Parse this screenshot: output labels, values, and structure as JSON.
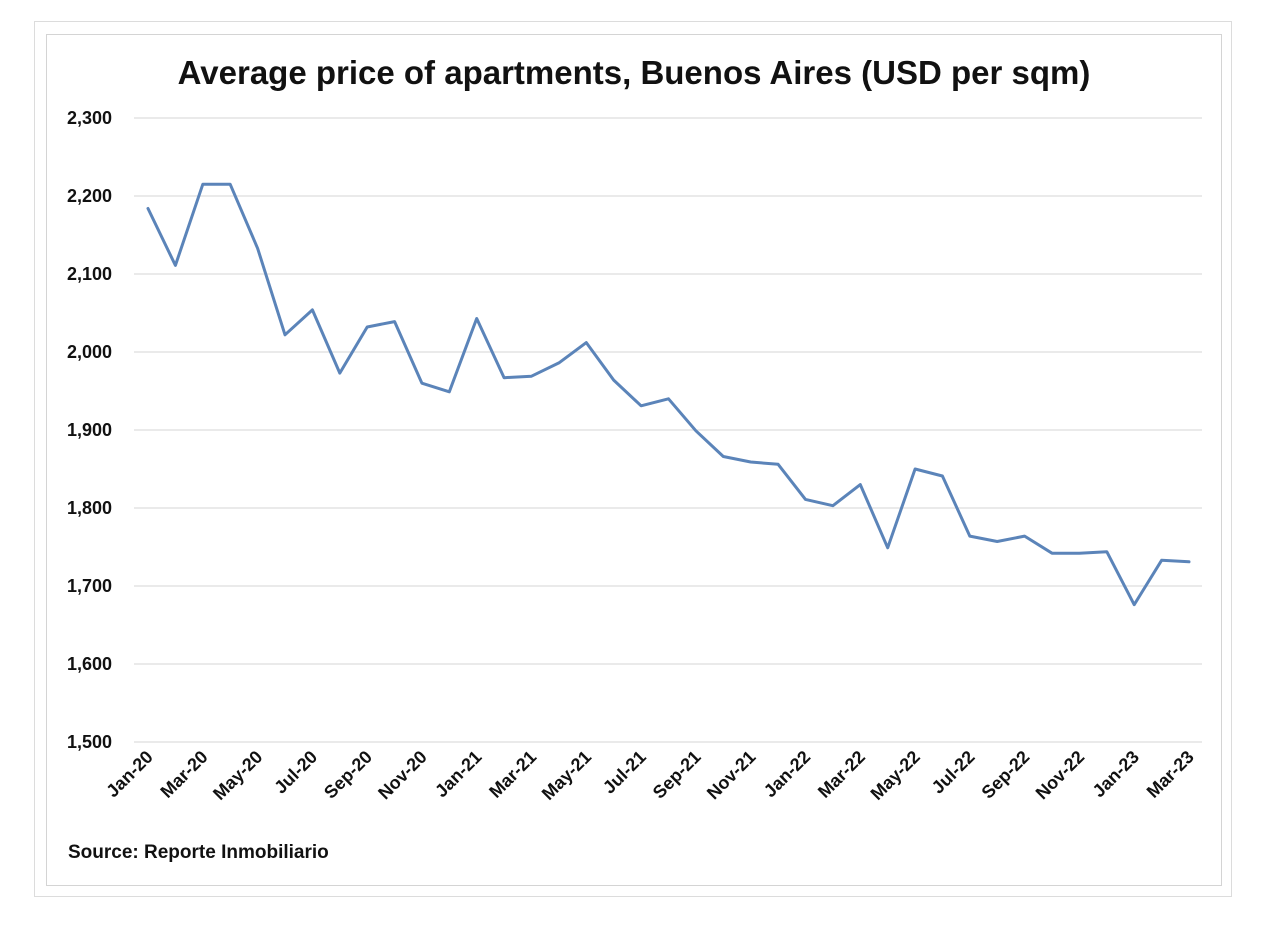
{
  "chart_data": {
    "type": "line",
    "title": "Average price of apartments, Buenos Aires (USD per sqm)",
    "source": "Source: Reporte Inmobiliario",
    "xlabel": "",
    "ylabel": "",
    "ylim": [
      1500,
      2300
    ],
    "yticks": [
      1500,
      1600,
      1700,
      1800,
      1900,
      2000,
      2100,
      2200,
      2300
    ],
    "ytick_labels": [
      "1,500",
      "1,600",
      "1,700",
      "1,800",
      "1,900",
      "2,000",
      "2,100",
      "2,200",
      "2,300"
    ],
    "grid": true,
    "legend": "none",
    "line_color": "#5b84b9",
    "categories": [
      "Jan-20",
      "Feb-20",
      "Mar-20",
      "Apr-20",
      "May-20",
      "Jun-20",
      "Jul-20",
      "Aug-20",
      "Sep-20",
      "Oct-20",
      "Nov-20",
      "Dec-20",
      "Jan-21",
      "Feb-21",
      "Mar-21",
      "Apr-21",
      "May-21",
      "Jun-21",
      "Jul-21",
      "Aug-21",
      "Sep-21",
      "Oct-21",
      "Nov-21",
      "Dec-21",
      "Jan-22",
      "Feb-22",
      "Mar-22",
      "Apr-22",
      "May-22",
      "Jun-22",
      "Jul-22",
      "Aug-22",
      "Sep-22",
      "Oct-22",
      "Nov-22",
      "Dec-22",
      "Jan-23",
      "Feb-23",
      "Mar-23"
    ],
    "x_tick_labels": [
      "Jan-20",
      "Mar-20",
      "May-20",
      "Jul-20",
      "Sep-20",
      "Nov-20",
      "Jan-21",
      "Mar-21",
      "May-21",
      "Jul-21",
      "Sep-21",
      "Nov-21",
      "Jan-22",
      "Mar-22",
      "May-22",
      "Jul-22",
      "Sep-22",
      "Nov-22",
      "Jan-23",
      "Mar-23"
    ],
    "series": [
      {
        "name": "Average price (USD per sqm)",
        "values": [
          2184,
          2111,
          2215,
          2215,
          2133,
          2022,
          2054,
          1973,
          2032,
          2039,
          1960,
          1949,
          2043,
          1967,
          1969,
          1986,
          2012,
          1964,
          1931,
          1940,
          1899,
          1866,
          1859,
          1856,
          1811,
          1803,
          1830,
          1749,
          1850,
          1841,
          1764,
          1757,
          1764,
          1742,
          1742,
          1744,
          1676,
          1733,
          1731
        ]
      }
    ]
  }
}
